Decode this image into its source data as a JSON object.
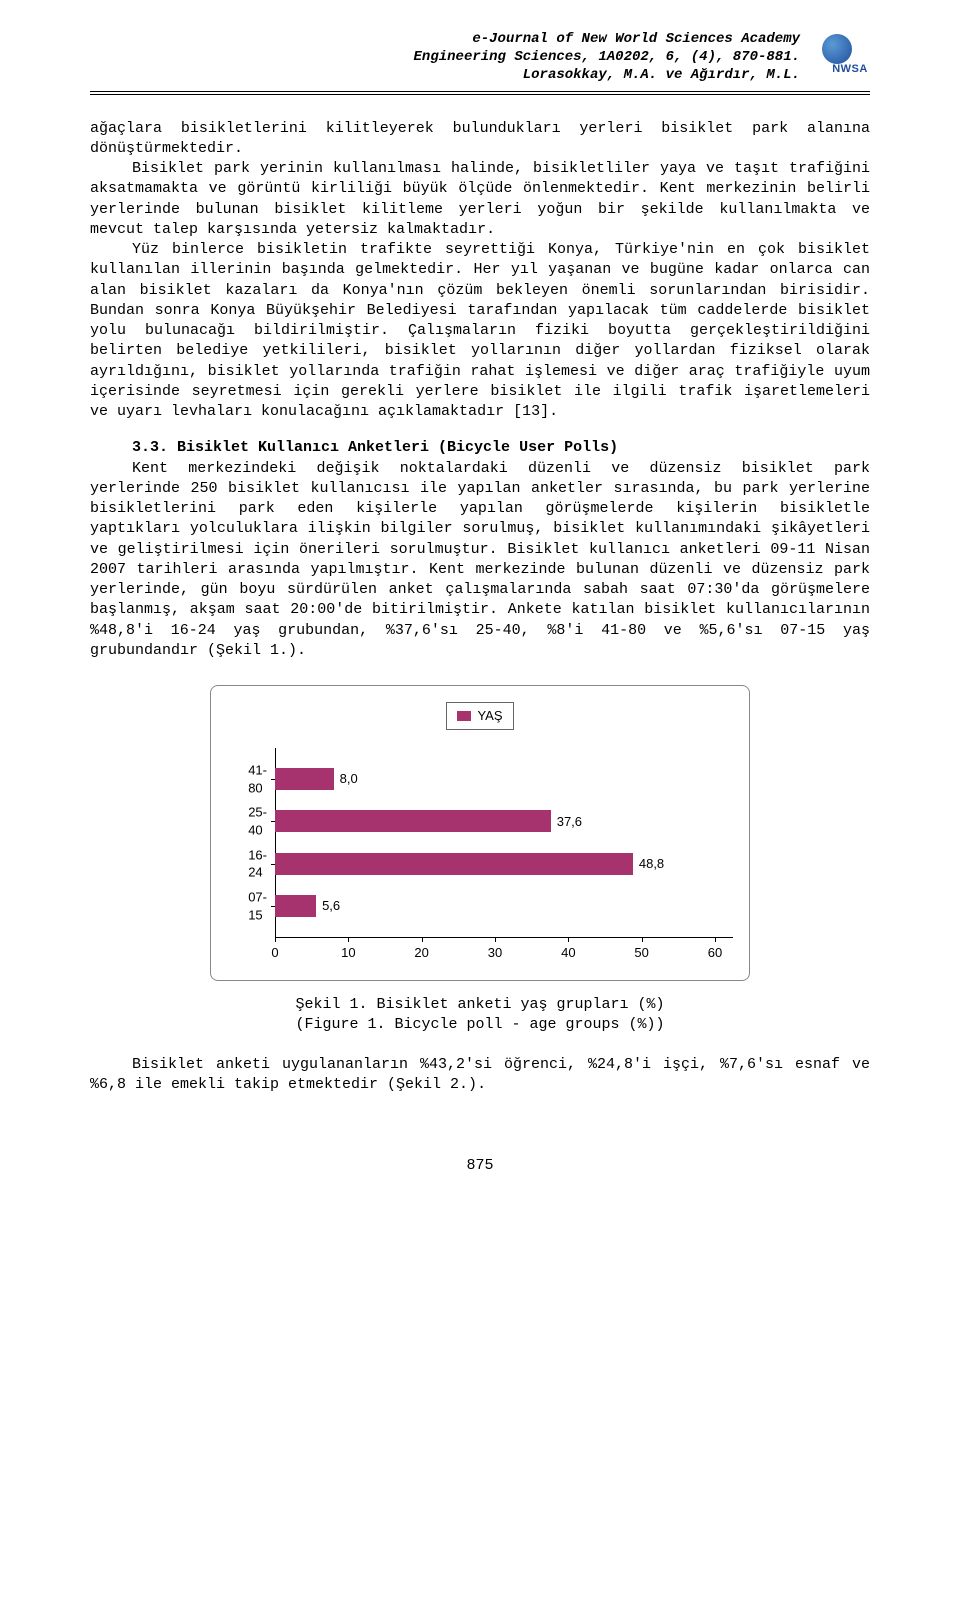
{
  "header": {
    "line1": "e-Journal of New World Sciences Academy",
    "line2": "Engineering Sciences, 1A0202, 6, (4), 870-881.",
    "line3": "Lorasokkay, M.A. ve Ağırdır, M.L.",
    "logo_text": "NWSA"
  },
  "paragraphs": {
    "p1": "ağaçlara bisikletlerini kilitleyerek bulundukları yerleri bisiklet park alanına dönüştürmektedir.",
    "p2": "Bisiklet park yerinin kullanılması halinde, bisikletliler yaya ve taşıt trafiğini aksatmamakta ve görüntü kirliliği büyük ölçüde önlenmektedir. Kent merkezinin belirli yerlerinde bulunan bisiklet kilitleme yerleri yoğun bir şekilde kullanılmakta ve mevcut talep karşısında yetersiz kalmaktadır.",
    "p3": "Yüz binlerce bisikletin trafikte seyrettiği Konya, Türkiye'nin en çok bisiklet kullanılan illerinin başında gelmektedir. Her yıl yaşanan ve bugüne kadar onlarca can alan bisiklet kazaları da Konya'nın çözüm bekleyen önemli sorunlarından birisidir. Bundan sonra Konya Büyükşehir Belediyesi tarafından yapılacak tüm caddelerde bisiklet yolu bulunacağı bildirilmiştir. Çalışmaların fiziki boyutta gerçekleştirildiğini belirten belediye yetkilileri, bisiklet yollarının diğer yollardan fiziksel olarak ayrıldığını, bisiklet yollarında trafiğin rahat işlemesi ve diğer araç trafiğiyle uyum içerisinde seyretmesi için gerekli yerlere bisiklet ile ilgili trafik işaretlemeleri ve uyarı levhaları konulacağını açıklamaktadır [13].",
    "section_head": "3.3. Bisiklet Kullanıcı Anketleri (Bicycle User Polls)",
    "p4": "Kent merkezindeki değişik noktalardaki düzenli ve düzensiz bisiklet park yerlerinde 250 bisiklet kullanıcısı ile yapılan anketler sırasında, bu park yerlerine bisikletlerini park eden kişilerle yapılan görüşmelerde kişilerin bisikletle yaptıkları yolculuklara ilişkin bilgiler sorulmuş, bisiklet kullanımındaki şikâyetleri ve geliştirilmesi için önerileri sorulmuştur. Bisiklet kullanıcı anketleri 09-11 Nisan 2007 tarihleri arasında yapılmıştır. Kent merkezinde bulunan düzenli ve düzensiz park yerlerinde, gün boyu sürdürülen anket çalışmalarında sabah saat 07:30'da görüşmelere başlanmış, akşam saat 20:00'de bitirilmiştir. Ankete katılan bisiklet kullanıcılarının %48,8'i 16-24 yaş grubundan, %37,6'sı 25-40, %8'i 41-80 ve %5,6'sı 07-15 yaş grubundandır (Şekil 1.).",
    "p5": "Bisiklet anketi uygulananların %43,2'si öğrenci, %24,8'i işçi, %7,6'sı esnaf ve %6,8 ile emekli takip etmektedir (Şekil 2.)."
  },
  "chart": {
    "legend_label": "YAŞ",
    "bar_color": "#a6326e",
    "border_color": "#888888",
    "categories": [
      "41-80",
      "25-40",
      "16-24",
      "07-15"
    ],
    "values": [
      8.0,
      37.6,
      48.8,
      5.6
    ],
    "value_labels": [
      "8,0",
      "37,6",
      "48,8",
      "5,6"
    ],
    "x_ticks": [
      0,
      10,
      20,
      30,
      40,
      50,
      60
    ],
    "x_max": 60
  },
  "caption": {
    "l1": "Şekil 1. Bisiklet anketi yaş grupları (%)",
    "l2": "(Figure 1. Bicycle poll - age groups (%))"
  },
  "page_number": "875"
}
